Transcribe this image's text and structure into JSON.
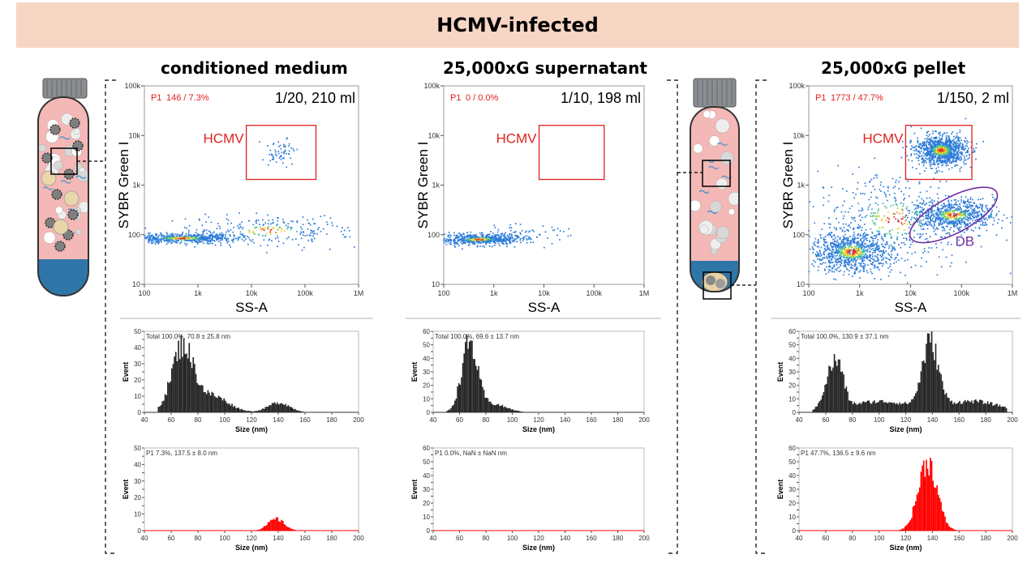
{
  "banner": {
    "title": "HCMV-infected",
    "color": "#f8d6c4"
  },
  "panels": [
    {
      "title": "conditioned medium",
      "p1_label": "P1",
      "p1_value": "146 / 7.3%",
      "dilution": "1/20, 210 ml",
      "gate_label": "HCMV",
      "total_text": "Total  100.0%,  70.8 ± 25.8 nm",
      "p1_hist_text": "P1  7.3%,  137.5 ± 8.0 nm"
    },
    {
      "title": "25,000xG supernatant",
      "p1_label": "P1",
      "p1_value": "0 / 0.0%",
      "dilution": "1/10, 198 ml",
      "gate_label": "HCMV",
      "total_text": "Total  100.0%,  69.6 ± 13.7 nm",
      "p1_hist_text": "P1  0.0%,  NaN ± NaN nm"
    },
    {
      "title": "25,000xG pellet",
      "p1_label": "P1",
      "p1_value": "1773 / 47.7%",
      "dilution": "1/150, 2 ml",
      "gate_label": "HCMV",
      "db_label": "DB",
      "total_text": "Total  100.0%,  130.9 ± 37.1 nm",
      "p1_hist_text": "P1  47.7%,  136.5 ± 9.6 nm"
    }
  ],
  "chart_data": [
    {
      "type": "scatter",
      "panel": "conditioned medium",
      "title": "conditioned medium",
      "xlabel": "SS-A",
      "ylabel": "SYBR Green I",
      "xscale": "log",
      "yscale": "log",
      "xlim": [
        100,
        1000000
      ],
      "ylim": [
        10,
        100000
      ],
      "x_ticks": [
        "100",
        "1k",
        "10k",
        "100k",
        "1M"
      ],
      "y_ticks": [
        "10",
        "100",
        "1k",
        "10k",
        "100k"
      ],
      "gate": {
        "label": "HCMV",
        "x": [
          8000,
          160000
        ],
        "y": [
          1300,
          16000
        ]
      },
      "clusters": [
        {
          "x_center": 500,
          "y_center": 85,
          "x_spread_log": 0.5,
          "y_spread_log": 0.05,
          "n": 600
        },
        {
          "x_center": 20000,
          "y_center": 120,
          "x_spread_log": 0.8,
          "y_spread_log": 0.15,
          "n": 250
        },
        {
          "x_center": 35000,
          "y_center": 4500,
          "x_spread_log": 0.15,
          "y_spread_log": 0.13,
          "n": 60
        }
      ],
      "p1_count": 146,
      "p1_percent": 7.3
    },
    {
      "type": "scatter",
      "panel": "25,000xG supernatant",
      "title": "25,000xG supernatant",
      "xlabel": "SS-A",
      "ylabel": "SYBR Green I",
      "xscale": "log",
      "yscale": "log",
      "xlim": [
        100,
        1000000
      ],
      "ylim": [
        10,
        100000
      ],
      "x_ticks": [
        "100",
        "1k",
        "10k",
        "100k",
        "1M"
      ],
      "y_ticks": [
        "10",
        "100",
        "1k",
        "10k",
        "100k"
      ],
      "gate": {
        "label": "HCMV",
        "x": [
          8000,
          160000
        ],
        "y": [
          1300,
          16000
        ]
      },
      "clusters": [
        {
          "x_center": 500,
          "y_center": 80,
          "x_spread_log": 0.4,
          "y_spread_log": 0.05,
          "n": 600
        },
        {
          "x_center": 3000,
          "y_center": 100,
          "x_spread_log": 0.5,
          "y_spread_log": 0.1,
          "n": 80
        }
      ],
      "p1_count": 0,
      "p1_percent": 0.0
    },
    {
      "type": "scatter",
      "panel": "25,000xG pellet",
      "title": "25,000xG pellet",
      "xlabel": "SS-A",
      "ylabel": "SYBR Green I",
      "xscale": "log",
      "yscale": "log",
      "xlim": [
        100,
        1000000
      ],
      "ylim": [
        10,
        100000
      ],
      "x_ticks": [
        "100",
        "1k",
        "10k",
        "100k",
        "1M"
      ],
      "y_ticks": [
        "10",
        "100",
        "1k",
        "10k",
        "100k"
      ],
      "gate": {
        "label": "HCMV",
        "x": [
          8000,
          160000
        ],
        "y": [
          1300,
          16000
        ]
      },
      "db_gate": {
        "label": "DB",
        "x_center": 70000,
        "y_center": 250,
        "color": "#7030a0"
      },
      "clusters": [
        {
          "x_center": 700,
          "y_center": 45,
          "x_spread_log": 0.4,
          "y_spread_log": 0.2,
          "n": 900
        },
        {
          "x_center": 40000,
          "y_center": 5000,
          "x_spread_log": 0.25,
          "y_spread_log": 0.15,
          "n": 1000
        },
        {
          "x_center": 70000,
          "y_center": 250,
          "x_spread_log": 0.4,
          "y_spread_log": 0.15,
          "n": 700
        },
        {
          "x_center": 5000,
          "y_center": 200,
          "x_spread_log": 0.8,
          "y_spread_log": 0.5,
          "n": 500
        }
      ],
      "p1_count": 1773,
      "p1_percent": 47.7
    },
    {
      "type": "bar",
      "panel": "conditioned medium",
      "histogram": "total",
      "xlabel": "Size (nm)",
      "ylabel": "Event",
      "xlim": [
        40,
        200
      ],
      "ylim": [
        0,
        50
      ],
      "color": "#262626",
      "x_ticks": [
        40,
        60,
        80,
        100,
        120,
        140,
        160,
        180,
        200
      ],
      "y_ticks": [
        0,
        5,
        10,
        15,
        20,
        25,
        30,
        35,
        40,
        45,
        50
      ],
      "peaks": [
        {
          "center": 68,
          "width": 8,
          "height": 40
        },
        {
          "center": 90,
          "width": 12,
          "height": 10
        },
        {
          "center": 140,
          "width": 8,
          "height": 6
        }
      ]
    },
    {
      "type": "bar",
      "panel": "conditioned medium",
      "histogram": "P1",
      "xlabel": "Size (nm)",
      "ylabel": "Event",
      "xlim": [
        40,
        200
      ],
      "ylim": [
        0,
        50
      ],
      "color": "#ff0000",
      "x_ticks": [
        40,
        60,
        80,
        100,
        120,
        140,
        160,
        180,
        200
      ],
      "y_ticks": [
        0,
        5,
        10,
        15,
        20,
        25,
        30,
        35,
        40,
        45,
        50
      ],
      "peaks": [
        {
          "center": 138,
          "width": 6,
          "height": 7
        }
      ]
    },
    {
      "type": "bar",
      "panel": "25,000xG supernatant",
      "histogram": "total",
      "xlabel": "Size (nm)",
      "ylabel": "Event",
      "xlim": [
        40,
        200
      ],
      "ylim": [
        0,
        60
      ],
      "color": "#262626",
      "x_ticks": [
        40,
        60,
        80,
        100,
        120,
        140,
        160,
        180,
        200
      ],
      "y_ticks": [
        0,
        5,
        10,
        15,
        20,
        25,
        30,
        35,
        40,
        45,
        50,
        55,
        60
      ],
      "peaks": [
        {
          "center": 67,
          "width": 6,
          "height": 50
        },
        {
          "center": 85,
          "width": 10,
          "height": 6
        }
      ]
    },
    {
      "type": "bar",
      "panel": "25,000xG supernatant",
      "histogram": "P1",
      "xlabel": "Size (nm)",
      "ylabel": "Event",
      "xlim": [
        40,
        200
      ],
      "ylim": [
        0,
        60
      ],
      "color": "#ff0000",
      "x_ticks": [
        40,
        60,
        80,
        100,
        120,
        140,
        160,
        180,
        200
      ],
      "y_ticks": [
        0,
        5,
        10,
        15,
        20,
        25,
        30,
        35,
        40,
        45,
        50,
        55,
        60
      ],
      "peaks": []
    },
    {
      "type": "bar",
      "panel": "25,000xG pellet",
      "histogram": "total",
      "xlabel": "Size (nm)",
      "ylabel": "Event",
      "xlim": [
        40,
        200
      ],
      "ylim": [
        0,
        60
      ],
      "color": "#262626",
      "x_ticks": [
        40,
        60,
        80,
        100,
        120,
        140,
        160,
        180,
        200
      ],
      "y_ticks": [
        0,
        5,
        10,
        15,
        20,
        25,
        30,
        35,
        40,
        45,
        50,
        55,
        60
      ],
      "peaks": [
        {
          "center": 63,
          "width": 5,
          "height": 25
        },
        {
          "center": 70,
          "width": 4,
          "height": 22
        },
        {
          "center": 100,
          "width": 25,
          "height": 8
        },
        {
          "center": 138,
          "width": 6,
          "height": 48
        },
        {
          "center": 170,
          "width": 20,
          "height": 8
        }
      ]
    },
    {
      "type": "bar",
      "panel": "25,000xG pellet",
      "histogram": "P1",
      "xlabel": "Size (nm)",
      "ylabel": "Event",
      "xlim": [
        40,
        200
      ],
      "ylim": [
        0,
        60
      ],
      "color": "#ff0000",
      "x_ticks": [
        40,
        60,
        80,
        100,
        120,
        140,
        160,
        180,
        200
      ],
      "y_ticks": [
        0,
        5,
        10,
        15,
        20,
        25,
        30,
        35,
        40,
        45,
        50,
        55,
        60
      ],
      "peaks": [
        {
          "center": 136,
          "width": 7,
          "height": 50
        }
      ]
    }
  ]
}
